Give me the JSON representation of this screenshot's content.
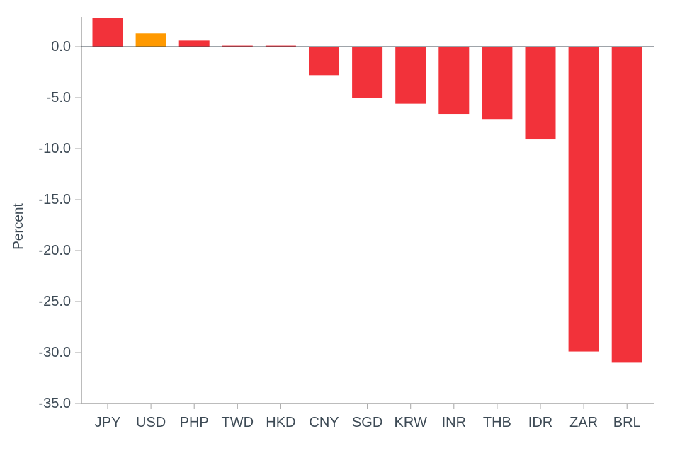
{
  "chart_data": {
    "type": "bar",
    "title": "",
    "xlabel": "",
    "ylabel": "Percent",
    "ylim": [
      -35.0,
      3.0
    ],
    "yticks": [
      "0.0",
      "-5.0",
      "-10.0",
      "-15.0",
      "-20.0",
      "-25.0",
      "-30.0",
      "-35.0"
    ],
    "grid": false,
    "legend": null,
    "categories": [
      "JPY",
      "USD",
      "PHP",
      "TWD",
      "HKD",
      "CNY",
      "SGD",
      "KRW",
      "INR",
      "THB",
      "IDR",
      "ZAR",
      "BRL"
    ],
    "values": [
      2.8,
      1.3,
      0.6,
      0.1,
      0.1,
      -2.8,
      -5.0,
      -5.6,
      -6.6,
      -7.1,
      -9.1,
      -29.9,
      -31.0
    ],
    "bar_colors": [
      "#f2323a",
      "#ff9900",
      "#f2323a",
      "#f2323a",
      "#f2323a",
      "#f2323a",
      "#f2323a",
      "#f2323a",
      "#f2323a",
      "#f2323a",
      "#f2323a",
      "#f2323a",
      "#f2323a"
    ],
    "highlight": {
      "category": "USD",
      "color": "#ff9900"
    },
    "default_color": "#f2323a"
  },
  "axis": {
    "ylabel": "Percent",
    "color": "#a6a6a6",
    "zero_line_color": "#3d4a55"
  }
}
